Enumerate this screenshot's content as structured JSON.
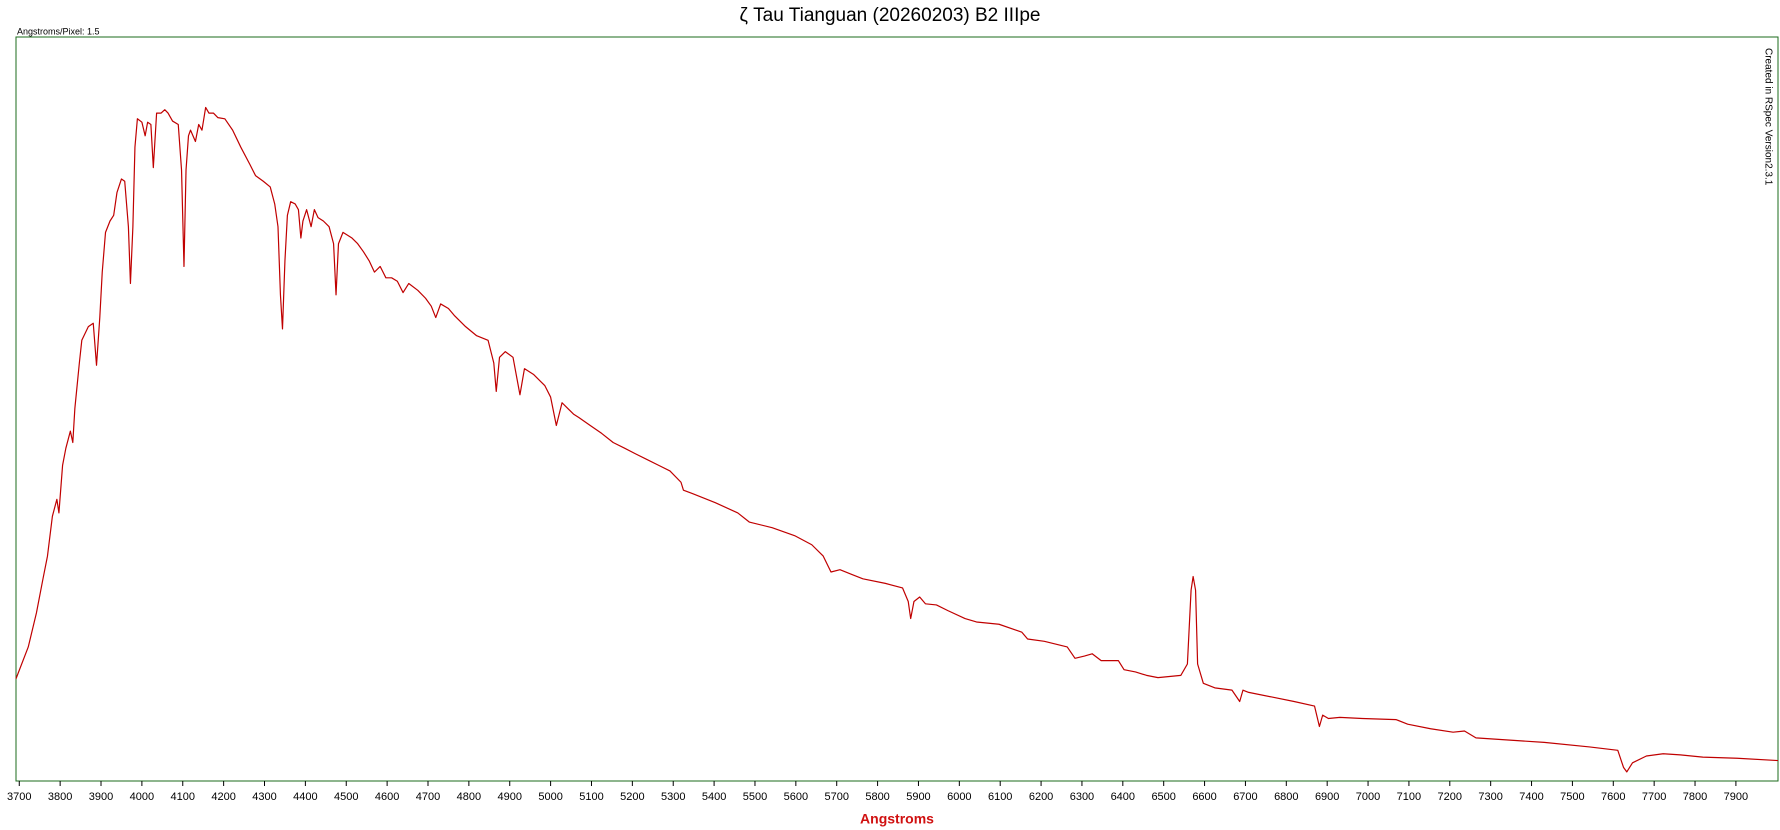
{
  "chart_data": {
    "type": "line",
    "title": "ζ Tau Tianguan (20260203) B2 IIIpe",
    "dispersion_label": "Angstroms/Pixel: 1.5",
    "credit": "Created in RSpec Version2.3.1",
    "xlabel": "Angstroms",
    "xlim": [
      3692,
      8003
    ],
    "ylim": [
      0,
      655
    ],
    "xticks": [
      3700,
      3800,
      3900,
      4000,
      4100,
      4200,
      4300,
      4400,
      4500,
      4600,
      4700,
      4800,
      4900,
      5000,
      5100,
      5200,
      5300,
      5400,
      5500,
      5600,
      5700,
      5800,
      5900,
      6000,
      6100,
      6200,
      6300,
      6400,
      6500,
      6600,
      6700,
      6800,
      6900,
      7000,
      7100,
      7200,
      7300,
      7400,
      7500,
      7600,
      7700,
      7800,
      7900
    ],
    "x": [
      3692,
      3722,
      3742,
      3758,
      3769,
      3781,
      3792,
      3797,
      3806,
      3814,
      3825,
      3831,
      3836,
      3847,
      3853,
      3869,
      3881,
      3889,
      3897,
      3903,
      3911,
      3922,
      3931,
      3939,
      3950,
      3958,
      3967,
      3972,
      3978,
      3983,
      3989,
      4000,
      4008,
      4014,
      4022,
      4028,
      4036,
      4047,
      4056,
      4064,
      4075,
      4089,
      4097,
      4103,
      4108,
      4114,
      4119,
      4131,
      4139,
      4147,
      4156,
      4164,
      4175,
      4186,
      4203,
      4222,
      4242,
      4264,
      4278,
      4297,
      4314,
      4325,
      4333,
      4339,
      4344,
      4350,
      4356,
      4364,
      4375,
      4383,
      4389,
      4394,
      4403,
      4414,
      4422,
      4431,
      4444,
      4458,
      4469,
      4475,
      4481,
      4492,
      4514,
      4528,
      4542,
      4556,
      4569,
      4583,
      4597,
      4611,
      4625,
      4639,
      4653,
      4675,
      4694,
      4708,
      4719,
      4731,
      4750,
      4764,
      4792,
      4819,
      4847,
      4861,
      4867,
      4875,
      4889,
      4908,
      4925,
      4936,
      4958,
      4986,
      5000,
      5014,
      5028,
      5042,
      5056,
      5069,
      5097,
      5125,
      5153,
      5181,
      5208,
      5236,
      5264,
      5292,
      5319,
      5325,
      5347,
      5403,
      5458,
      5486,
      5542,
      5597,
      5639,
      5667,
      5686,
      5708,
      5736,
      5764,
      5819,
      5861,
      5875,
      5881,
      5889,
      5903,
      5917,
      5944,
      5972,
      6014,
      6042,
      6097,
      6153,
      6167,
      6208,
      6264,
      6283,
      6306,
      6325,
      6347,
      6389,
      6403,
      6431,
      6458,
      6486,
      6542,
      6558,
      6567,
      6572,
      6578,
      6583,
      6597,
      6625,
      6667,
      6686,
      6694,
      6708,
      6764,
      6819,
      6869,
      6881,
      6889,
      6903,
      6931,
      6986,
      7069,
      7097,
      7153,
      7208,
      7236,
      7264,
      7347,
      7431,
      7542,
      7611,
      7625,
      7633,
      7647,
      7681,
      7722,
      7764,
      7819,
      7903,
      8003
    ],
    "series": [
      {
        "color": "#c00000",
        "values": [
          90,
          118,
          148,
          178,
          198,
          233,
          248,
          236,
          278,
          293,
          308,
          298,
          328,
          368,
          388,
          400,
          403,
          366,
          408,
          448,
          483,
          493,
          498,
          518,
          530,
          528,
          488,
          438,
          488,
          558,
          583,
          580,
          568,
          580,
          578,
          540,
          588,
          588,
          591,
          588,
          581,
          578,
          538,
          453,
          538,
          568,
          573,
          563,
          578,
          573,
          593,
          588,
          588,
          584,
          583,
          573,
          558,
          543,
          533,
          528,
          523,
          508,
          488,
          428,
          398,
          458,
          498,
          510,
          508,
          503,
          478,
          493,
          503,
          488,
          503,
          496,
          493,
          488,
          473,
          428,
          473,
          483,
          478,
          473,
          466,
          458,
          448,
          453,
          443,
          443,
          440,
          430,
          438,
          432,
          425,
          418,
          408,
          420,
          416,
          410,
          400,
          392,
          388,
          368,
          343,
          373,
          378,
          373,
          340,
          363,
          358,
          348,
          338,
          313,
          333,
          328,
          323,
          320,
          313,
          306,
          298,
          293,
          288,
          283,
          278,
          273,
          263,
          256,
          253,
          245,
          236,
          228,
          223,
          216,
          208,
          198,
          184,
          186,
          182,
          178,
          174,
          170,
          158,
          143,
          158,
          162,
          156,
          155,
          150,
          143,
          140,
          138,
          131,
          125,
          123,
          118,
          108,
          110,
          112,
          106,
          106,
          98,
          96,
          93,
          91,
          93,
          103,
          168,
          180,
          168,
          103,
          86,
          82,
          80,
          70,
          80,
          78,
          74,
          70,
          66,
          48,
          58,
          55,
          56,
          55,
          54,
          50,
          46,
          43,
          44,
          38,
          36,
          34,
          30,
          27,
          12,
          8,
          16,
          22,
          24,
          23,
          21,
          20,
          18
        ]
      }
    ],
    "frame_color": "#1b6b1b"
  }
}
